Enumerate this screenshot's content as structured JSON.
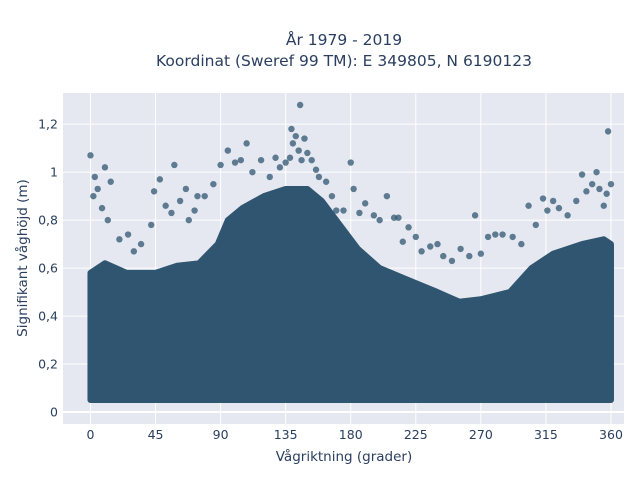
{
  "chart_data": {
    "type": "scatter",
    "title_lines": [
      "År 1979 - 2019",
      "Koordinat (Sweref 99 TM): E 349805, N 6190123"
    ],
    "xlabel": "Vågriktning (grader)",
    "ylabel": "Signifikant våghöjd (m)",
    "xlim": [
      -19,
      369
    ],
    "ylim": [
      -0.05,
      1.33
    ],
    "x_ticks": [
      0,
      45,
      90,
      135,
      180,
      225,
      270,
      315,
      360
    ],
    "y_ticks": [
      0,
      0.2,
      0.4,
      0.6,
      0.8,
      1,
      1.2
    ],
    "x_tick_labels": [
      "0",
      "45",
      "90",
      "135",
      "180",
      "225",
      "270",
      "315",
      "360"
    ],
    "y_tick_labels": [
      "0",
      "0,2",
      "0,4",
      "0,6",
      "0,8",
      "1",
      "1,2"
    ],
    "grid": true,
    "legend": "none",
    "marker_color": "#2f5570",
    "plot_bg": "#e5e8f0",
    "dense_band": {
      "lower": [
        [
          0,
          0.05
        ],
        [
          360,
          0.05
        ]
      ],
      "upper": [
        [
          0,
          0.58
        ],
        [
          10,
          0.62
        ],
        [
          25,
          0.58
        ],
        [
          45,
          0.58
        ],
        [
          60,
          0.61
        ],
        [
          75,
          0.62
        ],
        [
          88,
          0.7
        ],
        [
          95,
          0.8
        ],
        [
          105,
          0.85
        ],
        [
          120,
          0.9
        ],
        [
          135,
          0.93
        ],
        [
          150,
          0.93
        ],
        [
          160,
          0.88
        ],
        [
          170,
          0.8
        ],
        [
          185,
          0.68
        ],
        [
          200,
          0.6
        ],
        [
          220,
          0.55
        ],
        [
          240,
          0.5
        ],
        [
          255,
          0.46
        ],
        [
          270,
          0.47
        ],
        [
          290,
          0.5
        ],
        [
          305,
          0.6
        ],
        [
          320,
          0.66
        ],
        [
          340,
          0.7
        ],
        [
          355,
          0.72
        ],
        [
          360,
          0.7
        ]
      ]
    },
    "points": [
      {
        "x": 0,
        "y": 1.07
      },
      {
        "x": 3,
        "y": 0.98
      },
      {
        "x": 5,
        "y": 0.93
      },
      {
        "x": 2,
        "y": 0.9
      },
      {
        "x": 10,
        "y": 1.02
      },
      {
        "x": 14,
        "y": 0.96
      },
      {
        "x": 8,
        "y": 0.85
      },
      {
        "x": 12,
        "y": 0.8
      },
      {
        "x": 20,
        "y": 0.72
      },
      {
        "x": 26,
        "y": 0.74
      },
      {
        "x": 30,
        "y": 0.67
      },
      {
        "x": 35,
        "y": 0.7
      },
      {
        "x": 42,
        "y": 0.78
      },
      {
        "x": 44,
        "y": 0.92
      },
      {
        "x": 48,
        "y": 0.97
      },
      {
        "x": 52,
        "y": 0.86
      },
      {
        "x": 56,
        "y": 0.83
      },
      {
        "x": 58,
        "y": 1.03
      },
      {
        "x": 62,
        "y": 0.88
      },
      {
        "x": 66,
        "y": 0.93
      },
      {
        "x": 68,
        "y": 0.8
      },
      {
        "x": 72,
        "y": 0.84
      },
      {
        "x": 74,
        "y": 0.9
      },
      {
        "x": 79,
        "y": 0.9
      },
      {
        "x": 85,
        "y": 0.95
      },
      {
        "x": 90,
        "y": 1.03
      },
      {
        "x": 95,
        "y": 1.09
      },
      {
        "x": 100,
        "y": 1.04
      },
      {
        "x": 104,
        "y": 1.05
      },
      {
        "x": 108,
        "y": 1.12
      },
      {
        "x": 112,
        "y": 1.0
      },
      {
        "x": 118,
        "y": 1.05
      },
      {
        "x": 124,
        "y": 0.98
      },
      {
        "x": 128,
        "y": 1.06
      },
      {
        "x": 131,
        "y": 1.02
      },
      {
        "x": 135,
        "y": 1.04
      },
      {
        "x": 138,
        "y": 1.06
      },
      {
        "x": 139,
        "y": 1.18
      },
      {
        "x": 140,
        "y": 1.12
      },
      {
        "x": 142,
        "y": 1.15
      },
      {
        "x": 144,
        "y": 1.09
      },
      {
        "x": 145,
        "y": 1.28
      },
      {
        "x": 146,
        "y": 1.05
      },
      {
        "x": 148,
        "y": 1.14
      },
      {
        "x": 150,
        "y": 1.08
      },
      {
        "x": 153,
        "y": 1.05
      },
      {
        "x": 156,
        "y": 1.01
      },
      {
        "x": 158,
        "y": 0.98
      },
      {
        "x": 163,
        "y": 0.96
      },
      {
        "x": 167,
        "y": 0.9
      },
      {
        "x": 170,
        "y": 0.84
      },
      {
        "x": 175,
        "y": 0.84
      },
      {
        "x": 180,
        "y": 1.04
      },
      {
        "x": 182,
        "y": 0.93
      },
      {
        "x": 186,
        "y": 0.83
      },
      {
        "x": 190,
        "y": 0.87
      },
      {
        "x": 196,
        "y": 0.82
      },
      {
        "x": 200,
        "y": 0.8
      },
      {
        "x": 205,
        "y": 0.9
      },
      {
        "x": 210,
        "y": 0.81
      },
      {
        "x": 213,
        "y": 0.81
      },
      {
        "x": 216,
        "y": 0.71
      },
      {
        "x": 220,
        "y": 0.77
      },
      {
        "x": 225,
        "y": 0.73
      },
      {
        "x": 229,
        "y": 0.67
      },
      {
        "x": 235,
        "y": 0.69
      },
      {
        "x": 240,
        "y": 0.7
      },
      {
        "x": 244,
        "y": 0.65
      },
      {
        "x": 250,
        "y": 0.63
      },
      {
        "x": 256,
        "y": 0.68
      },
      {
        "x": 262,
        "y": 0.65
      },
      {
        "x": 266,
        "y": 0.82
      },
      {
        "x": 270,
        "y": 0.66
      },
      {
        "x": 275,
        "y": 0.73
      },
      {
        "x": 280,
        "y": 0.74
      },
      {
        "x": 285,
        "y": 0.74
      },
      {
        "x": 292,
        "y": 0.73
      },
      {
        "x": 298,
        "y": 0.7
      },
      {
        "x": 303,
        "y": 0.86
      },
      {
        "x": 308,
        "y": 0.78
      },
      {
        "x": 313,
        "y": 0.89
      },
      {
        "x": 316,
        "y": 0.84
      },
      {
        "x": 320,
        "y": 0.88
      },
      {
        "x": 324,
        "y": 0.85
      },
      {
        "x": 330,
        "y": 0.82
      },
      {
        "x": 336,
        "y": 0.88
      },
      {
        "x": 340,
        "y": 0.99
      },
      {
        "x": 343,
        "y": 0.92
      },
      {
        "x": 347,
        "y": 0.95
      },
      {
        "x": 350,
        "y": 1.0
      },
      {
        "x": 352,
        "y": 0.93
      },
      {
        "x": 355,
        "y": 0.86
      },
      {
        "x": 357,
        "y": 0.91
      },
      {
        "x": 358,
        "y": 1.17
      },
      {
        "x": 360,
        "y": 0.95
      }
    ]
  }
}
